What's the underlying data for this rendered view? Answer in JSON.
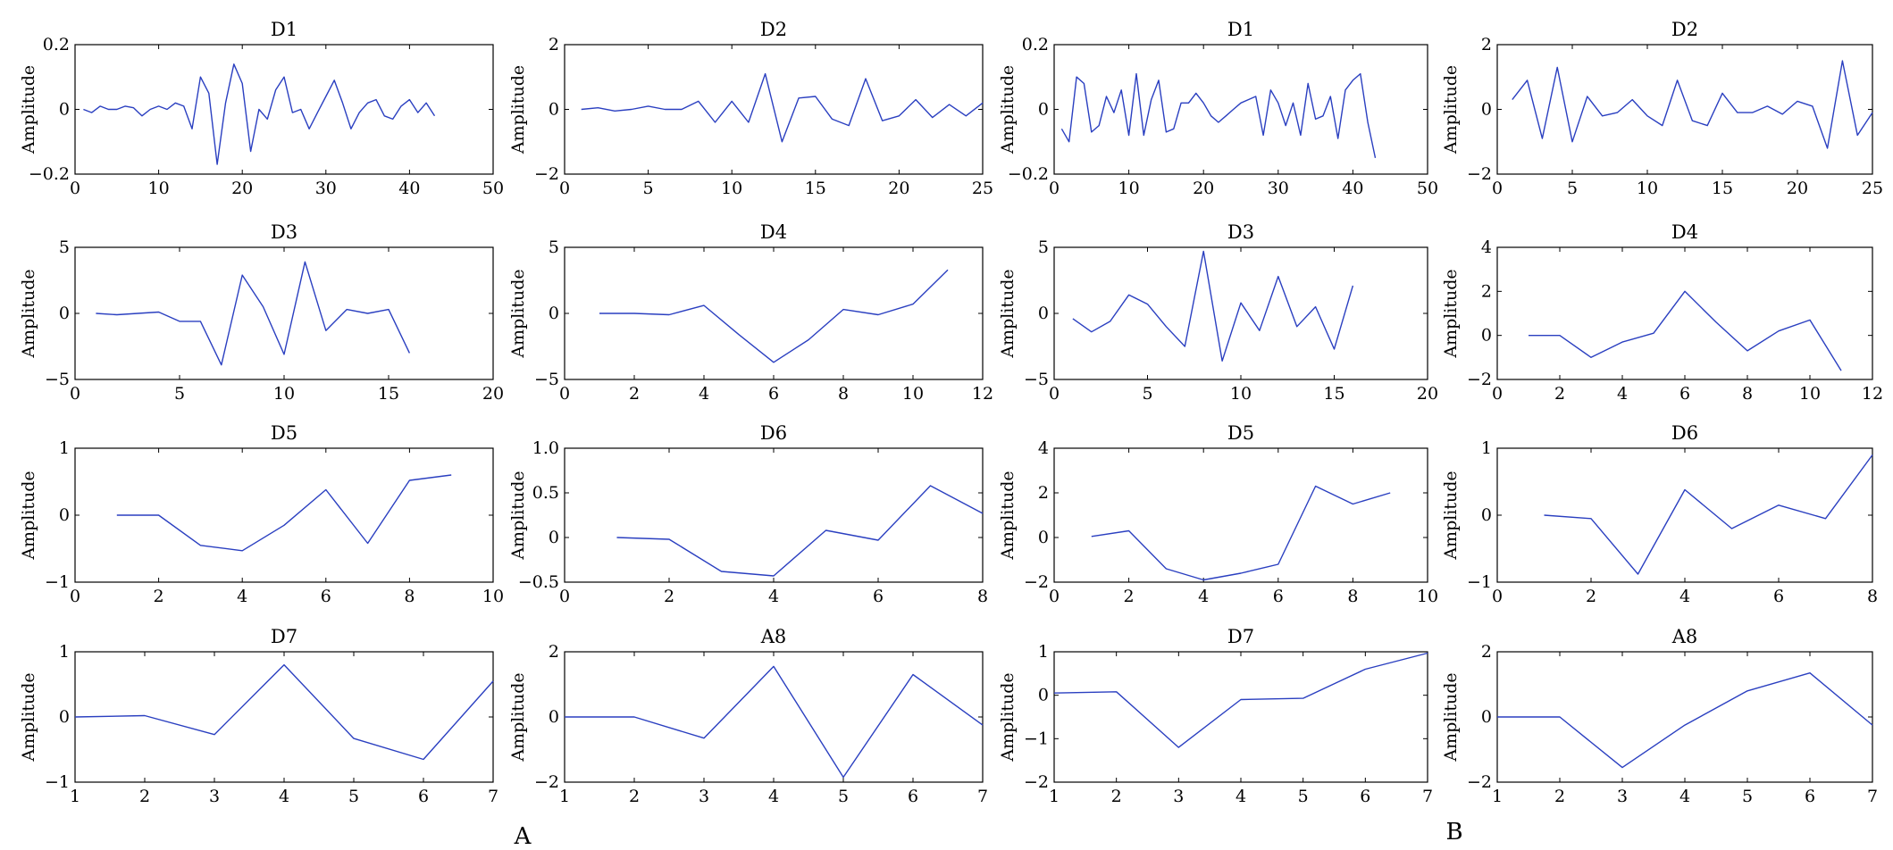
{
  "panel_labels": [
    "A",
    "B"
  ],
  "chart_data": [
    {
      "type": "line",
      "title": "D1",
      "ylabel": "Amplitude",
      "xlim": [
        0,
        50
      ],
      "ylim": [
        -0.2,
        0.2
      ],
      "xticks": [
        "0",
        "10",
        "20",
        "30",
        "40",
        "50"
      ],
      "yticks": [
        "−0.2",
        "0",
        "0.2"
      ],
      "x": [
        1,
        2,
        3,
        4,
        5,
        6,
        7,
        8,
        9,
        10,
        11,
        12,
        13,
        14,
        15,
        16,
        17,
        18,
        19,
        20,
        21,
        22,
        23,
        24,
        25,
        26,
        27,
        28,
        29,
        30,
        31,
        32,
        33,
        34,
        35,
        36,
        37,
        38,
        39,
        40,
        41,
        42,
        43
      ],
      "values": [
        0,
        -0.01,
        0.01,
        0,
        0,
        0.01,
        0.005,
        -0.02,
        0,
        0.01,
        0,
        0.02,
        0.01,
        -0.06,
        0.1,
        0.05,
        -0.17,
        0.02,
        0.14,
        0.08,
        -0.13,
        0,
        -0.03,
        0.06,
        0.1,
        -0.01,
        0,
        -0.06,
        -0.01,
        0.04,
        0.09,
        0.02,
        -0.06,
        -0.01,
        0.02,
        0.03,
        -0.02,
        -0.03,
        0.01,
        0.03,
        -0.01,
        0.02,
        -0.02
      ]
    },
    {
      "type": "line",
      "title": "D2",
      "ylabel": "Amplitude",
      "xlim": [
        0,
        25
      ],
      "ylim": [
        -2,
        2
      ],
      "xticks": [
        "0",
        "5",
        "10",
        "15",
        "20",
        "25"
      ],
      "yticks": [
        "−2",
        "0",
        "2"
      ],
      "x": [
        1,
        2,
        3,
        4,
        5,
        6,
        7,
        8,
        9,
        10,
        11,
        12,
        13,
        14,
        15,
        16,
        17,
        18,
        19,
        20,
        21,
        22,
        23,
        24,
        25
      ],
      "values": [
        0,
        0.05,
        -0.05,
        0,
        0.1,
        0,
        0,
        0.25,
        -0.4,
        0.25,
        -0.4,
        1.1,
        -1.0,
        0.35,
        0.4,
        -0.3,
        -0.5,
        0.95,
        -0.35,
        -0.2,
        0.3,
        -0.25,
        0.15,
        -0.2,
        0.2
      ]
    },
    {
      "type": "line",
      "title": "D1",
      "ylabel": "Amplitude",
      "xlim": [
        0,
        50
      ],
      "ylim": [
        -0.2,
        0.2
      ],
      "xticks": [
        "0",
        "10",
        "20",
        "30",
        "40",
        "50"
      ],
      "yticks": [
        "−0.2",
        "0",
        "0.2"
      ],
      "x": [
        1,
        2,
        3,
        4,
        5,
        6,
        7,
        8,
        9,
        10,
        11,
        12,
        13,
        14,
        15,
        16,
        17,
        18,
        19,
        20,
        21,
        22,
        23,
        24,
        25,
        26,
        27,
        28,
        29,
        30,
        31,
        32,
        33,
        34,
        35,
        36,
        37,
        38,
        39,
        40,
        41,
        42,
        43
      ],
      "values": [
        -0.06,
        -0.1,
        0.1,
        0.08,
        -0.07,
        -0.05,
        0.04,
        -0.01,
        0.06,
        -0.08,
        0.11,
        -0.08,
        0.03,
        0.09,
        -0.07,
        -0.06,
        0.02,
        0.02,
        0.05,
        0.02,
        -0.02,
        -0.04,
        -0.02,
        0,
        0.02,
        0.03,
        0.04,
        -0.08,
        0.06,
        0.02,
        -0.05,
        0.02,
        -0.08,
        0.08,
        -0.03,
        -0.02,
        0.04,
        -0.09,
        0.06,
        0.09,
        0.11,
        -0.04,
        -0.15
      ]
    },
    {
      "type": "line",
      "title": "D2",
      "ylabel": "Amplitude",
      "xlim": [
        0,
        25
      ],
      "ylim": [
        -2,
        2
      ],
      "xticks": [
        "0",
        "5",
        "10",
        "15",
        "20",
        "25"
      ],
      "yticks": [
        "−2",
        "0",
        "2"
      ],
      "x": [
        1,
        2,
        3,
        4,
        5,
        6,
        7,
        8,
        9,
        10,
        11,
        12,
        13,
        14,
        15,
        16,
        17,
        18,
        19,
        20,
        21,
        22,
        23,
        24,
        25
      ],
      "values": [
        0.3,
        0.9,
        -0.9,
        1.3,
        -1.0,
        0.4,
        -0.2,
        -0.1,
        0.3,
        -0.2,
        -0.5,
        0.9,
        -0.35,
        -0.5,
        0.5,
        -0.1,
        -0.1,
        0.1,
        -0.15,
        0.25,
        0.1,
        -1.2,
        1.5,
        -0.8,
        -0.1
      ]
    },
    {
      "type": "line",
      "title": "D3",
      "ylabel": "Amplitude",
      "xlim": [
        0,
        20
      ],
      "ylim": [
        -5,
        5
      ],
      "xticks": [
        "0",
        "5",
        "10",
        "15",
        "20"
      ],
      "yticks": [
        "−5",
        "0",
        "5"
      ],
      "x": [
        1,
        2,
        3,
        4,
        5,
        6,
        7,
        8,
        9,
        10,
        11,
        12,
        13,
        14,
        15,
        16
      ],
      "values": [
        0,
        -0.1,
        0,
        0.1,
        -0.6,
        -0.6,
        -3.9,
        2.9,
        0.5,
        -3.1,
        3.9,
        -1.3,
        0.3,
        0,
        0.3,
        -3.0
      ]
    },
    {
      "type": "line",
      "title": "D4",
      "ylabel": "Amplitude",
      "xlim": [
        0,
        12
      ],
      "ylim": [
        -5,
        5
      ],
      "xticks": [
        "0",
        "2",
        "4",
        "6",
        "8",
        "10",
        "12"
      ],
      "yticks": [
        "−5",
        "0",
        "5"
      ],
      "x": [
        1,
        2,
        3,
        4,
        5,
        6,
        7,
        8,
        9,
        10,
        11
      ],
      "values": [
        0,
        0,
        -0.1,
        0.6,
        -1.6,
        -3.7,
        -2.0,
        0.3,
        -0.1,
        0.7,
        3.3
      ]
    },
    {
      "type": "line",
      "title": "D3",
      "ylabel": "Amplitude",
      "xlim": [
        0,
        20
      ],
      "ylim": [
        -5,
        5
      ],
      "xticks": [
        "0",
        "5",
        "10",
        "15",
        "20"
      ],
      "yticks": [
        "−5",
        "0",
        "5"
      ],
      "x": [
        1,
        2,
        3,
        4,
        5,
        6,
        7,
        8,
        9,
        10,
        11,
        12,
        13,
        14,
        15,
        16
      ],
      "values": [
        -0.4,
        -1.4,
        -0.6,
        1.4,
        0.7,
        -1.0,
        -2.5,
        4.7,
        -3.6,
        0.8,
        -1.3,
        2.8,
        -1.0,
        0.5,
        -2.7,
        2.1
      ]
    },
    {
      "type": "line",
      "title": "D4",
      "ylabel": "Amplitude",
      "xlim": [
        0,
        12
      ],
      "ylim": [
        -2,
        4
      ],
      "xticks": [
        "0",
        "2",
        "4",
        "6",
        "8",
        "10",
        "12"
      ],
      "yticks": [
        "−2",
        "0",
        "2",
        "4"
      ],
      "x": [
        1,
        2,
        3,
        4,
        5,
        6,
        7,
        8,
        9,
        10,
        11
      ],
      "values": [
        0,
        0,
        -1.0,
        -0.3,
        0.1,
        2.0,
        0.6,
        -0.7,
        0.2,
        0.7,
        -1.6
      ]
    },
    {
      "type": "line",
      "title": "D5",
      "ylabel": "Amplitude",
      "xlim": [
        0,
        10
      ],
      "ylim": [
        -1,
        1
      ],
      "xticks": [
        "0",
        "2",
        "4",
        "6",
        "8",
        "10"
      ],
      "yticks": [
        "−1",
        "0",
        "1"
      ],
      "x": [
        1,
        2,
        3,
        4,
        5,
        6,
        7,
        8,
        9
      ],
      "values": [
        0,
        0,
        -0.45,
        -0.53,
        -0.15,
        0.38,
        -0.42,
        0.52,
        0.6
      ]
    },
    {
      "type": "line",
      "title": "D6",
      "ylabel": "Amplitude",
      "xlim": [
        0,
        8
      ],
      "ylim": [
        -0.5,
        1.0
      ],
      "xticks": [
        "0",
        "2",
        "4",
        "6",
        "8"
      ],
      "yticks": [
        "−0.5",
        "0",
        "0.5",
        "1.0"
      ],
      "x": [
        1,
        2,
        3,
        4,
        5,
        6,
        7,
        8
      ],
      "values": [
        0,
        -0.02,
        -0.38,
        -0.43,
        0.08,
        -0.03,
        0.58,
        0.27
      ]
    },
    {
      "type": "line",
      "title": "D5",
      "ylabel": "Amplitude",
      "xlim": [
        0,
        10
      ],
      "ylim": [
        -2,
        4
      ],
      "xticks": [
        "0",
        "2",
        "4",
        "6",
        "8",
        "10"
      ],
      "yticks": [
        "−2",
        "0",
        "2",
        "4"
      ],
      "x": [
        1,
        2,
        3,
        4,
        5,
        6,
        7,
        8,
        9
      ],
      "values": [
        0.05,
        0.3,
        -1.4,
        -1.9,
        -1.6,
        -1.2,
        2.3,
        1.5,
        2.0
      ]
    },
    {
      "type": "line",
      "title": "D6",
      "ylabel": "Amplitude",
      "xlim": [
        0,
        8
      ],
      "ylim": [
        -1,
        1
      ],
      "xticks": [
        "0",
        "2",
        "4",
        "6",
        "8"
      ],
      "yticks": [
        "−1",
        "0",
        "1"
      ],
      "x": [
        1,
        2,
        3,
        4,
        5,
        6,
        7,
        8
      ],
      "values": [
        0,
        -0.05,
        -0.88,
        0.38,
        -0.2,
        0.15,
        -0.05,
        0.9
      ]
    },
    {
      "type": "line",
      "title": "D7",
      "ylabel": "Amplitude",
      "xlim": [
        1,
        7
      ],
      "ylim": [
        -1,
        1
      ],
      "xticks": [
        "1",
        "2",
        "3",
        "4",
        "5",
        "6",
        "7"
      ],
      "yticks": [
        "−1",
        "0",
        "1"
      ],
      "x": [
        1,
        2,
        3,
        4,
        5,
        6,
        7
      ],
      "values": [
        0,
        0.02,
        -0.27,
        0.8,
        -0.33,
        -0.65,
        0.55
      ]
    },
    {
      "type": "line",
      "title": "A8",
      "ylabel": "Amplitude",
      "xlim": [
        1,
        7
      ],
      "ylim": [
        -2,
        2
      ],
      "xticks": [
        "1",
        "2",
        "3",
        "4",
        "5",
        "6",
        "7"
      ],
      "yticks": [
        "−2",
        "0",
        "2"
      ],
      "x": [
        1,
        2,
        3,
        4,
        5,
        6,
        7
      ],
      "values": [
        0,
        0,
        -0.65,
        1.55,
        -1.85,
        1.3,
        -0.25
      ]
    },
    {
      "type": "line",
      "title": "D7",
      "ylabel": "Amplitude",
      "xlim": [
        1,
        7
      ],
      "ylim": [
        -2,
        1
      ],
      "xticks": [
        "1",
        "2",
        "3",
        "4",
        "5",
        "6",
        "7"
      ],
      "yticks": [
        "−2",
        "−1",
        "0",
        "1"
      ],
      "x": [
        1,
        2,
        3,
        4,
        5,
        6,
        7
      ],
      "values": [
        0.05,
        0.08,
        -1.2,
        -0.1,
        -0.07,
        0.6,
        0.97
      ]
    },
    {
      "type": "line",
      "title": "A8",
      "ylabel": "Amplitude",
      "xlim": [
        1,
        7
      ],
      "ylim": [
        -2,
        2
      ],
      "xticks": [
        "1",
        "2",
        "3",
        "4",
        "5",
        "6",
        "7"
      ],
      "yticks": [
        "−2",
        "0",
        "2"
      ],
      "x": [
        1,
        2,
        3,
        4,
        5,
        6,
        7
      ],
      "values": [
        0,
        0,
        -1.55,
        -0.25,
        0.8,
        1.35,
        -0.25
      ]
    }
  ]
}
